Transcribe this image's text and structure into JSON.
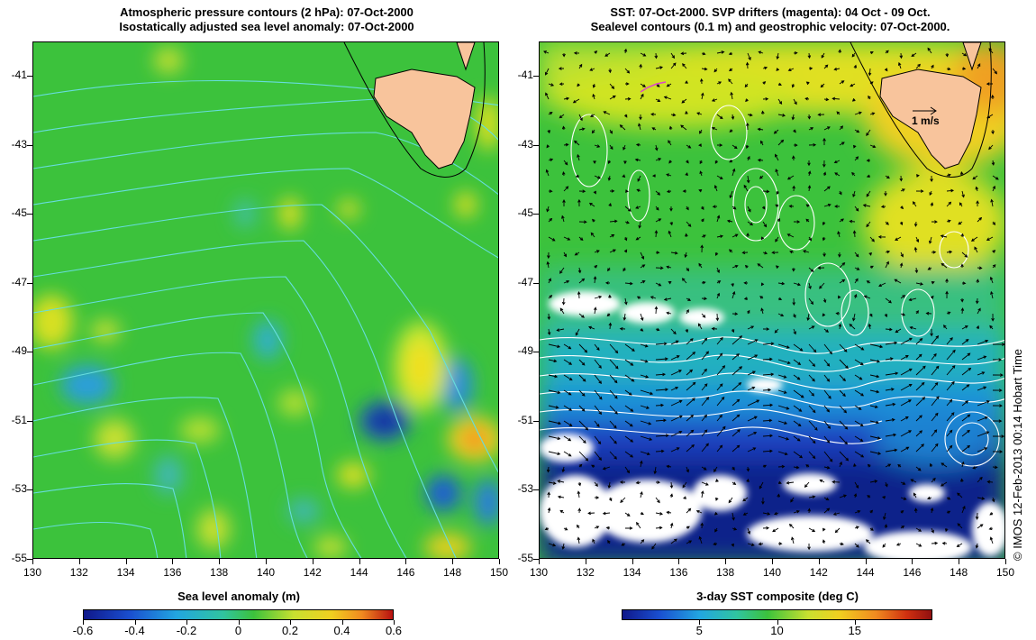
{
  "left_panel": {
    "title_line1": "Atmospheric pressure contours (2 hPa): 07-Oct-2000",
    "title_line2": "Isostatically adjusted sea level anomaly: 07-Oct-2000",
    "colorbar_title": "Sea level anomaly (m)",
    "colorbar_labels": [
      "-0.6",
      "-0.4",
      "-0.2",
      "0",
      "0.2",
      "0.4",
      "0.6"
    ],
    "colors": {
      "land": "#f8c49c",
      "contour": "#66dddd"
    }
  },
  "right_panel": {
    "title_line1": "SST: 07-Oct-2000. SVP drifters (magenta): 04 Oct - 09 Oct.",
    "title_line2": "Sealevel contours (0.1 m) and geostrophic velocity: 07-Oct-2000.",
    "colorbar_title": "3-day SST composite (deg C)",
    "colorbar_labels": [
      "5",
      "10",
      "15"
    ],
    "velocity_scale_label": "1 m/s",
    "colors": {
      "land": "#f8c49c",
      "contour": "#ffffff",
      "drifter": "#dd44cc"
    }
  },
  "axes": {
    "y_labels": [
      "-41",
      "-43",
      "-45",
      "-47",
      "-49",
      "-51",
      "-53",
      "-55"
    ],
    "x_labels": [
      "130",
      "132",
      "134",
      "136",
      "138",
      "140",
      "142",
      "144",
      "146",
      "148",
      "150"
    ],
    "lon_range": [
      130,
      150
    ],
    "lat_range": [
      -55,
      -40
    ]
  },
  "credit": "© IMOS 12-Feb-2013 00:14 Hobart Time"
}
